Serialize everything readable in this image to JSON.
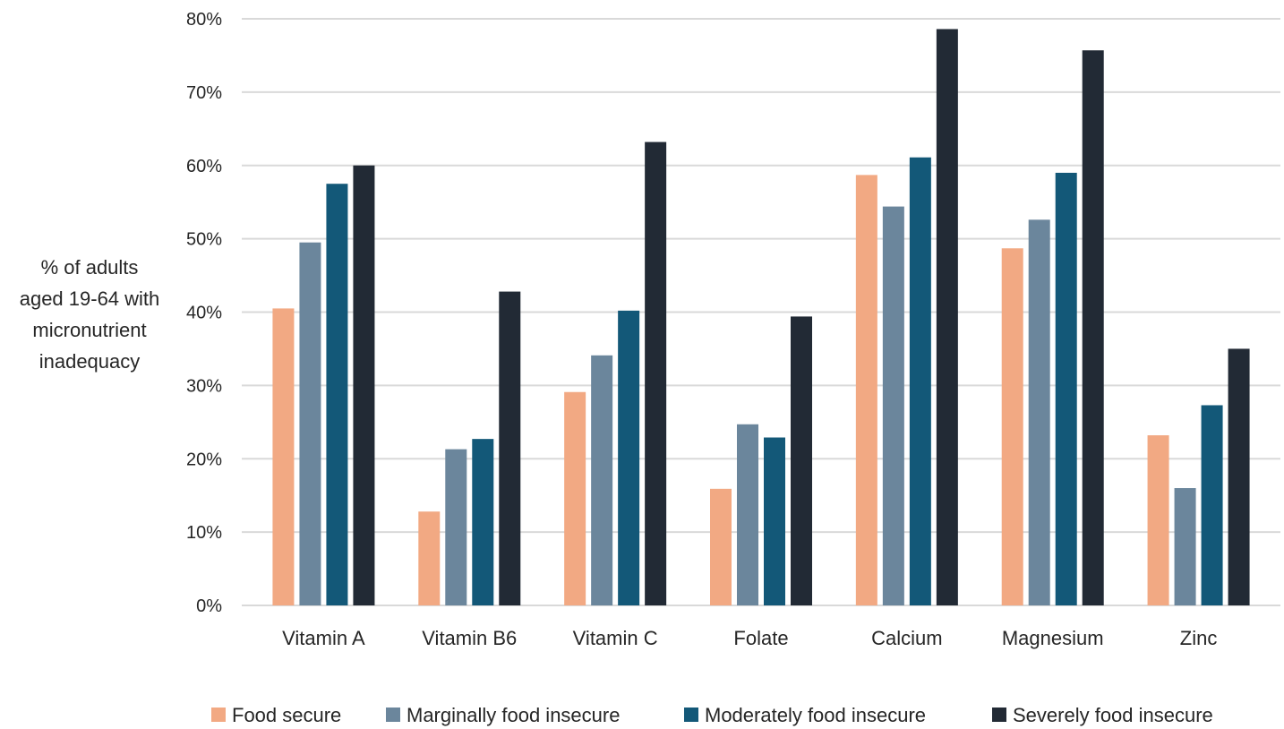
{
  "chart_data": {
    "type": "bar",
    "ylabel_lines": [
      "% of adults",
      "aged 19-64 with",
      "micronutrient",
      "inadequacy"
    ],
    "categories": [
      "Vitamin A",
      "Vitamin B6",
      "Vitamin C",
      "Folate",
      "Calcium",
      "Magnesium",
      "Zinc"
    ],
    "yticks": [
      "0%",
      "10%",
      "20%",
      "30%",
      "40%",
      "50%",
      "60%",
      "70%",
      "80%"
    ],
    "ylim": [
      0,
      80
    ],
    "grid": true,
    "legend_position": "bottom",
    "series": [
      {
        "name": "Food secure",
        "color": "#f2a983",
        "values": [
          40.5,
          12.8,
          29.1,
          15.9,
          58.7,
          48.7,
          23.2
        ]
      },
      {
        "name": "Marginally food insecure",
        "color": "#6b869c",
        "values": [
          49.5,
          21.3,
          34.1,
          24.7,
          54.4,
          52.6,
          16.0
        ]
      },
      {
        "name": "Moderately food insecure",
        "color": "#135878",
        "values": [
          57.5,
          22.7,
          40.2,
          22.9,
          61.1,
          59.0,
          27.3
        ]
      },
      {
        "name": "Severely food insecure",
        "color": "#222a35",
        "values": [
          60.0,
          42.8,
          63.2,
          39.4,
          78.6,
          75.7,
          35.0
        ]
      }
    ]
  }
}
